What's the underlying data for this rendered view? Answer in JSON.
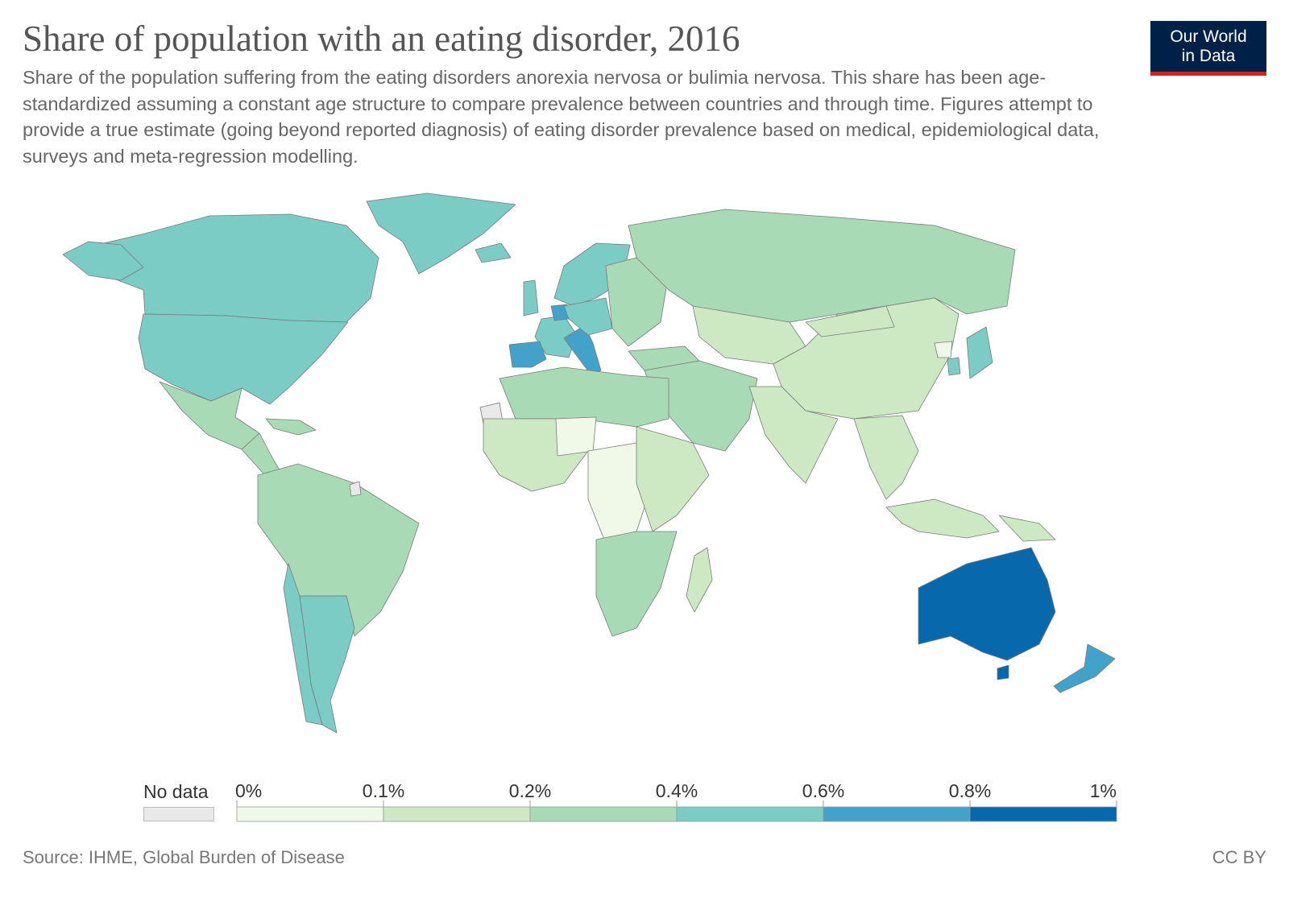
{
  "header": {
    "title": "Share of population with an eating disorder, 2016",
    "subtitle": "Share of the population suffering from the eating disorders anorexia nervosa or bulimia nervosa. This share has been age-standardized assuming a constant age structure to compare prevalence between countries and through time. Figures attempt to provide a true estimate (going beyond reported diagnosis) of eating disorder prevalence based on medical, epidemiological data, surveys and meta-regression modelling."
  },
  "logo": {
    "line1": "Our World",
    "line2": "in Data"
  },
  "legend": {
    "no_data_label": "No data",
    "no_data_color": "#e9e9e9",
    "ticks": [
      "0%",
      "0.1%",
      "0.2%",
      "0.4%",
      "0.6%",
      "0.8%",
      "1%"
    ],
    "colors": [
      "#f0f9e8",
      "#cce9c4",
      "#a8dab5",
      "#7accc4",
      "#43a2ca",
      "#0868ac"
    ]
  },
  "regions": [
    {
      "name": "Canada",
      "bin": 3
    },
    {
      "name": "United States",
      "bin": 3
    },
    {
      "name": "Greenland",
      "bin": 3
    },
    {
      "name": "Alaska",
      "bin": 3
    },
    {
      "name": "Mexico",
      "bin": 2
    },
    {
      "name": "Central America",
      "bin": 2
    },
    {
      "name": "Caribbean",
      "bin": 2
    },
    {
      "name": "South America",
      "bin": 2
    },
    {
      "name": "Argentina",
      "bin": 3
    },
    {
      "name": "Chile",
      "bin": 3
    },
    {
      "name": "French Guiana",
      "bin": -1
    },
    {
      "name": "Iceland",
      "bin": 3
    },
    {
      "name": "Scandinavia",
      "bin": 3
    },
    {
      "name": "United Kingdom",
      "bin": 3
    },
    {
      "name": "France",
      "bin": 3
    },
    {
      "name": "Benelux",
      "bin": 4
    },
    {
      "name": "Spain",
      "bin": 4
    },
    {
      "name": "Italy",
      "bin": 4
    },
    {
      "name": "Central Europe",
      "bin": 3
    },
    {
      "name": "Eastern Europe",
      "bin": 2
    },
    {
      "name": "Russia",
      "bin": 2
    },
    {
      "name": "Turkey",
      "bin": 2
    },
    {
      "name": "Middle East",
      "bin": 2
    },
    {
      "name": "Central Asia",
      "bin": 1
    },
    {
      "name": "China",
      "bin": 1
    },
    {
      "name": "Mongolia",
      "bin": 1
    },
    {
      "name": "South Asia",
      "bin": 1
    },
    {
      "name": "Southeast Asia",
      "bin": 1
    },
    {
      "name": "Indonesia",
      "bin": 1
    },
    {
      "name": "Japan",
      "bin": 3
    },
    {
      "name": "South Korea",
      "bin": 3
    },
    {
      "name": "North Korea",
      "bin": 0
    },
    {
      "name": "North Africa",
      "bin": 2
    },
    {
      "name": "Western Sahara",
      "bin": -1
    },
    {
      "name": "West Africa",
      "bin": 1
    },
    {
      "name": "Sahel",
      "bin": 0
    },
    {
      "name": "Central Africa",
      "bin": 0
    },
    {
      "name": "East Africa",
      "bin": 1
    },
    {
      "name": "Southern Africa",
      "bin": 2
    },
    {
      "name": "Madagascar",
      "bin": 1
    },
    {
      "name": "Papua New Guinea",
      "bin": 1
    },
    {
      "name": "Australia",
      "bin": 5
    },
    {
      "name": "Tasmania",
      "bin": 5
    },
    {
      "name": "New Zealand",
      "bin": 4
    }
  ],
  "footer": {
    "source": "Source: IHME, Global Burden of Disease",
    "license": "CC BY"
  }
}
